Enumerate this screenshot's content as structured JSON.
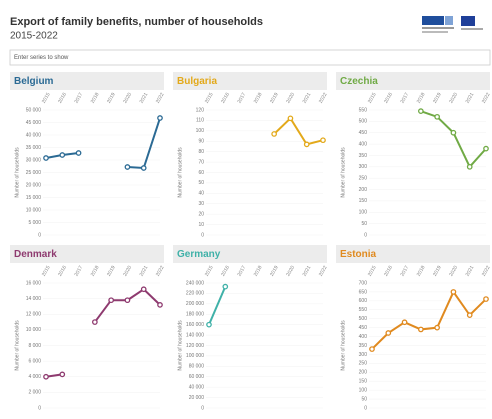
{
  "title": "Export of family benefits, number of households",
  "subtitle": "2015-2022",
  "search_placeholder": "Enter series to show",
  "chart_data": [
    {
      "type": "line",
      "title": "Belgium",
      "color": "#2b6a94",
      "ylabel": "Number of households",
      "categories": [
        "2015",
        "2016",
        "2017",
        "2018",
        "2019",
        "2020",
        "2021",
        "2022"
      ],
      "values": [
        30800,
        32000,
        32800,
        null,
        null,
        27200,
        26800,
        46800
      ],
      "ylim": [
        0,
        50000
      ],
      "yticks": [
        0,
        {
          "value": 5000,
          "label": "5 000"
        },
        {
          "value": 10000,
          "label": "10 000"
        },
        {
          "value": 15000,
          "label": "15 000"
        },
        {
          "value": 20000,
          "label": "20 000"
        },
        {
          "value": 25000,
          "label": "25 000"
        },
        {
          "value": 30000,
          "label": "30 000"
        },
        {
          "value": 35000,
          "label": "35 000"
        },
        {
          "value": 40000,
          "label": "40 000"
        },
        {
          "value": 45000,
          "label": "45 000"
        },
        {
          "value": 50000,
          "label": "50 000"
        }
      ]
    },
    {
      "type": "line",
      "title": "Bulgaria",
      "color": "#e3a91a",
      "ylabel": "Number of households",
      "categories": [
        "2015",
        "2016",
        "2017",
        "2018",
        "2019",
        "2020",
        "2021",
        "2022"
      ],
      "values": [
        null,
        null,
        null,
        null,
        97,
        112,
        87,
        91
      ],
      "ylim": [
        0,
        120
      ],
      "yticks": [
        0,
        10,
        20,
        30,
        40,
        50,
        60,
        70,
        80,
        90,
        100,
        110,
        120
      ]
    },
    {
      "type": "line",
      "title": "Czechia",
      "color": "#70aa45",
      "ylabel": "Number of households",
      "categories": [
        "2015",
        "2016",
        "2017",
        "2018",
        "2019",
        "2020",
        "2021",
        "2022"
      ],
      "values": [
        null,
        null,
        null,
        545,
        520,
        450,
        300,
        380
      ],
      "ylim": [
        0,
        550
      ],
      "yticks": [
        0,
        50,
        100,
        150,
        200,
        250,
        300,
        350,
        400,
        450,
        500,
        550
      ]
    },
    {
      "type": "line",
      "title": "Denmark",
      "color": "#8e3a6f",
      "ylabel": "Number of households",
      "categories": [
        "2015",
        "2016",
        "2017",
        "2018",
        "2019",
        "2020",
        "2021",
        "2022"
      ],
      "values": [
        4000,
        4300,
        null,
        11000,
        13800,
        13800,
        15200,
        13200
      ],
      "ylim": [
        0,
        16000
      ],
      "yticks": [
        0,
        {
          "value": 2000,
          "label": "2 000"
        },
        {
          "value": 4000,
          "label": "4 000"
        },
        {
          "value": 6000,
          "label": "6 000"
        },
        {
          "value": 8000,
          "label": "8 000"
        },
        {
          "value": 10000,
          "label": "10 000"
        },
        {
          "value": 12000,
          "label": "12 000"
        },
        {
          "value": 14000,
          "label": "14 000"
        },
        {
          "value": 16000,
          "label": "16 000"
        }
      ]
    },
    {
      "type": "line",
      "title": "Germany",
      "color": "#3fb1a8",
      "ylabel": "Number of households",
      "categories": [
        "2015",
        "2016",
        "2017",
        "2018",
        "2019",
        "2020",
        "2021",
        "2022"
      ],
      "values": [
        160000,
        233000,
        null,
        null,
        null,
        null,
        null,
        null
      ],
      "ylim": [
        0,
        240000
      ],
      "yticks": [
        0,
        {
          "value": 20000,
          "label": "20 000"
        },
        {
          "value": 40000,
          "label": "40 000"
        },
        {
          "value": 60000,
          "label": "60 000"
        },
        {
          "value": 80000,
          "label": "80 000"
        },
        {
          "value": 100000,
          "label": "100 000"
        },
        {
          "value": 120000,
          "label": "120 000"
        },
        {
          "value": 140000,
          "label": "140 000"
        },
        {
          "value": 160000,
          "label": "160 000"
        },
        {
          "value": 180000,
          "label": "180 000"
        },
        {
          "value": 200000,
          "label": "200 000"
        },
        {
          "value": 220000,
          "label": "220 000"
        },
        {
          "value": 240000,
          "label": "240 000"
        }
      ]
    },
    {
      "type": "line",
      "title": "Estonia",
      "color": "#e08a1f",
      "ylabel": "Number of households",
      "categories": [
        "2015",
        "2016",
        "2017",
        "2018",
        "2019",
        "2020",
        "2021",
        "2022"
      ],
      "values": [
        330,
        420,
        480,
        440,
        450,
        650,
        520,
        610
      ],
      "ylim": [
        0,
        700
      ],
      "yticks": [
        0,
        50,
        100,
        150,
        200,
        250,
        300,
        350,
        400,
        450,
        500,
        550,
        600,
        650,
        700
      ]
    }
  ]
}
